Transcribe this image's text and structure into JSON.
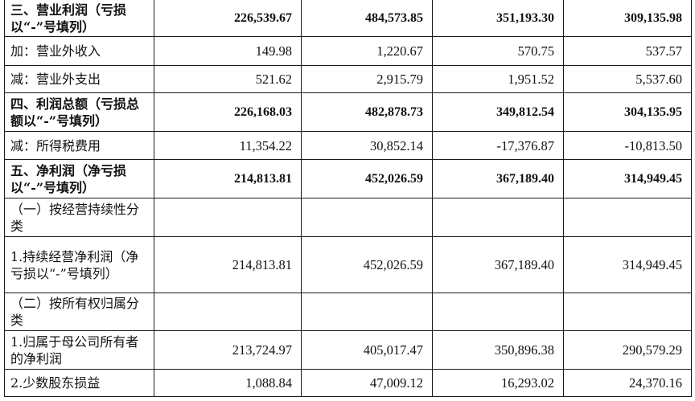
{
  "rows": [
    {
      "label": "三、营业利润（亏损以“-”号填列）",
      "values": [
        "226,539.67",
        "484,573.85",
        "351,193.30",
        "309,135.98"
      ],
      "bold": true
    },
    {
      "label": "加：营业外收入",
      "values": [
        "149.98",
        "1,220.67",
        "570.75",
        "537.57"
      ],
      "bold": false
    },
    {
      "label": "减：营业外支出",
      "values": [
        "521.62",
        "2,915.79",
        "1,951.52",
        "5,537.60"
      ],
      "bold": false
    },
    {
      "label": "四、利润总额（亏损总额以“-”号填列）",
      "values": [
        "226,168.03",
        "482,878.73",
        "349,812.54",
        "304,135.95"
      ],
      "bold": true
    },
    {
      "label": "减：所得税费用",
      "values": [
        "11,354.22",
        "30,852.14",
        "-17,376.87",
        "-10,813.50"
      ],
      "bold": false
    },
    {
      "label": "五、净利润（净亏损以“-”号填列）",
      "values": [
        "214,813.81",
        "452,026.59",
        "367,189.40",
        "314,949.45"
      ],
      "bold": true
    },
    {
      "label": "（一）按经营持续性分类",
      "values": [
        "",
        "",
        "",
        ""
      ],
      "bold": false
    },
    {
      "label": "1.持续经营净利润（净亏损以“-”号填列）",
      "values": [
        "214,813.81",
        "452,026.59",
        "367,189.40",
        "314,949.45"
      ],
      "bold": false
    },
    {
      "label": "（二）按所有权归属分类",
      "values": [
        "",
        "",
        "",
        ""
      ],
      "bold": false
    },
    {
      "label": "1.归属于母公司所有者的净利润",
      "values": [
        "213,724.97",
        "405,017.47",
        "350,896.38",
        "290,579.29"
      ],
      "bold": false
    },
    {
      "label": "2.少数股东损益",
      "values": [
        "1,088.84",
        "47,009.12",
        "16,293.02",
        "24,370.16"
      ],
      "bold": false
    }
  ]
}
